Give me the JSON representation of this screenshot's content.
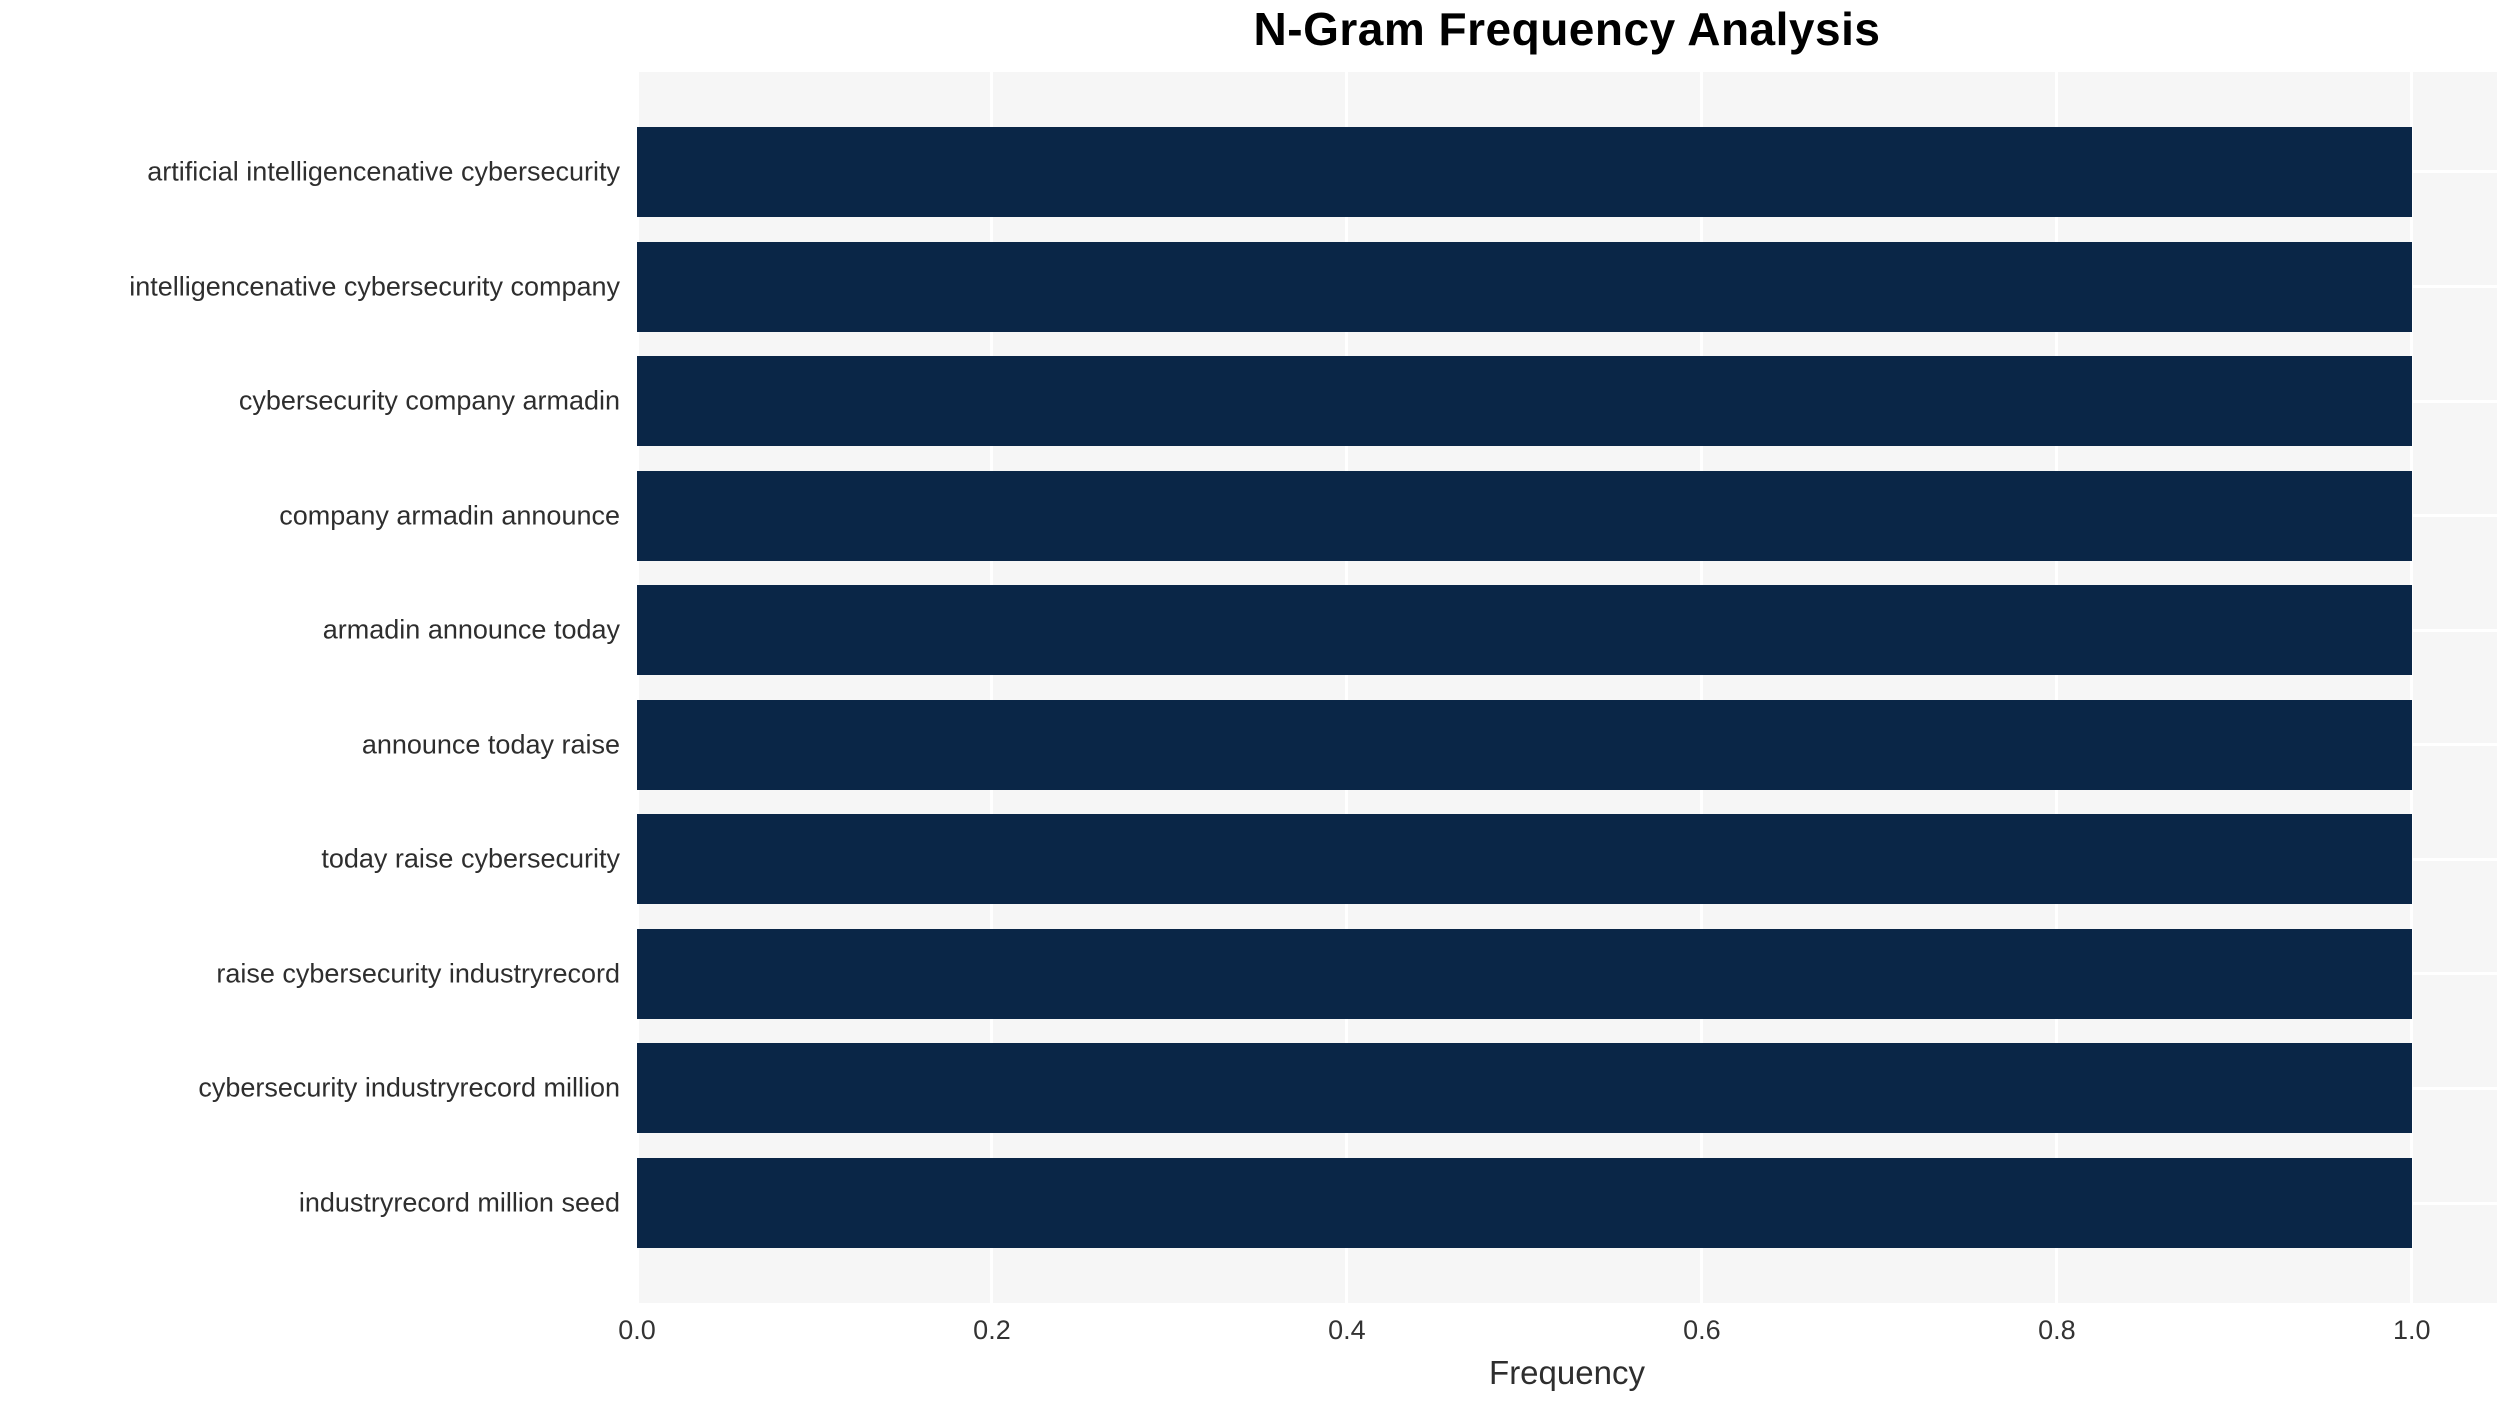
{
  "chart_data": {
    "type": "bar",
    "orientation": "horizontal",
    "title": "N-Gram Frequency Analysis",
    "xlabel": "Frequency",
    "ylabel": "",
    "categories": [
      "artificial intelligencenative cybersecurity",
      "intelligencenative cybersecurity company",
      "cybersecurity company armadin",
      "company armadin announce",
      "armadin announce today",
      "announce today raise",
      "today raise cybersecurity",
      "raise cybersecurity industryrecord",
      "cybersecurity industryrecord million",
      "industryrecord million seed"
    ],
    "values": [
      1.0,
      1.0,
      1.0,
      1.0,
      1.0,
      1.0,
      1.0,
      1.0,
      1.0,
      1.0
    ],
    "xlim": [
      0.0,
      1.048
    ],
    "xticks": {
      "values": [
        0.0,
        0.2,
        0.4,
        0.6,
        0.8,
        1.0
      ],
      "labels": [
        "0.0",
        "0.2",
        "0.4",
        "0.6",
        "0.8",
        "1.0"
      ]
    },
    "legend": "none",
    "grid": "white gridlines: vertical at x ticks, horizontal at category centers",
    "colors": {
      "bar": "#0a2647",
      "plot_background": "#f6f6f6",
      "page_background": "#ffffff",
      "gridline": "#ffffff",
      "title_text": "#000000",
      "label_text": "#2e2e2e"
    }
  }
}
